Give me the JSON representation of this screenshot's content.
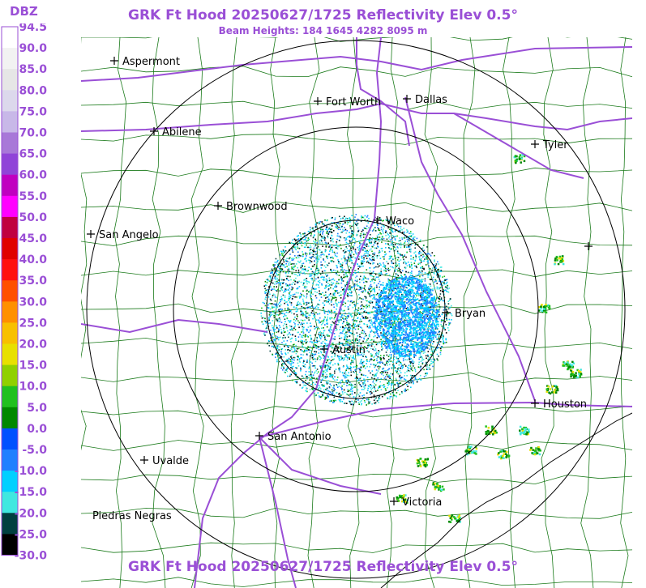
{
  "header": {
    "title": "GRK Ft Hood 20250627/1725 Reflectivity Elev 0.5°",
    "subtitle": "Beam Heights: 184 1645 4282 8095 m",
    "footer": "GRK Ft Hood 20250627/1725 Reflectivity Elev 0.5°"
  },
  "legend": {
    "unit": "DBZ",
    "ticks": [
      "94.5",
      "90.0",
      "85.0",
      "80.0",
      "75.0",
      "70.0",
      "65.0",
      "60.0",
      "55.0",
      "50.0",
      "45.0",
      "40.0",
      "35.0",
      "30.0",
      "25.0",
      "20.0",
      "15.0",
      "10.0",
      "5.0",
      "0.0",
      "-5.0",
      "-10.0",
      "-15.0",
      "-20.0",
      "-25.0",
      "-30.0"
    ],
    "colors": [
      "#ffffff",
      "#f2f2f2",
      "#e6e6e6",
      "#dcd8ec",
      "#c8b8e8",
      "#a878d8",
      "#9044d8",
      "#c000c0",
      "#ff00ff",
      "#c00040",
      "#e00000",
      "#ff1010",
      "#ff5000",
      "#ff9000",
      "#f8c000",
      "#e8e000",
      "#90d000",
      "#20c020",
      "#008800",
      "#0050ff",
      "#2080ff",
      "#00d0ff",
      "#40e8e0",
      "#004040",
      "#000000"
    ],
    "text_color": "#9a4fd6"
  },
  "cities": [
    {
      "name": "Aspermont",
      "label": "Aspermont"
    },
    {
      "name": "Abilene",
      "label": "Abilene"
    },
    {
      "name": "Fort Worth",
      "label": "Fort Worth"
    },
    {
      "name": "Dallas",
      "label": "Dallas"
    },
    {
      "name": "Tyler",
      "label": "Tyler"
    },
    {
      "name": "Brownwood",
      "label": "Brownwood"
    },
    {
      "name": "Waco",
      "label": "Waco"
    },
    {
      "name": "San Angelo",
      "label": "San Angelo"
    },
    {
      "name": "Bryan",
      "label": "Bryan"
    },
    {
      "name": "Austin",
      "label": "Austin"
    },
    {
      "name": "Houston",
      "label": "Houston"
    },
    {
      "name": "San Antonio",
      "label": "San Antonio"
    },
    {
      "name": "Uvalde",
      "label": "Uvalde"
    },
    {
      "name": "Victoria",
      "label": "Victoria"
    },
    {
      "name": "Piedras Negras",
      "label": "Piedras Negras"
    }
  ],
  "colors": {
    "county_lines": "#1a7a1a",
    "highways": "#9a4fd6",
    "range_rings": "#000000"
  }
}
